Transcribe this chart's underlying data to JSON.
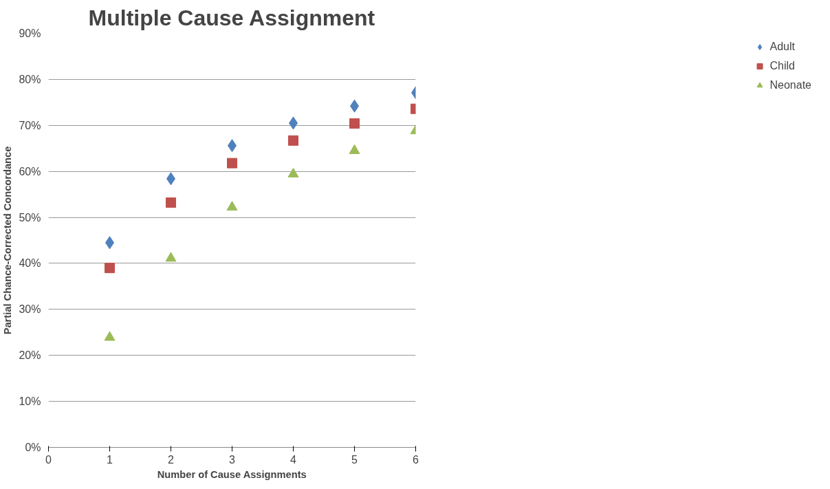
{
  "chart_data": {
    "type": "scatter",
    "title": "Multiple Cause Assignment",
    "xlabel": "Number of Cause Assignments",
    "ylabel": "Partial Chance-Corrected Concordance",
    "x": [
      1,
      2,
      3,
      4,
      5,
      6
    ],
    "series": [
      {
        "name": "Adult",
        "color": "#4f81bd",
        "marker": "diamond",
        "values": [
          44.5,
          58.4,
          65.6,
          70.5,
          74.2,
          77.1
        ]
      },
      {
        "name": "Child",
        "color": "#c0504d",
        "marker": "square",
        "values": [
          39.0,
          53.2,
          61.8,
          66.7,
          70.4,
          73.6
        ]
      },
      {
        "name": "Neonate",
        "color": "#9bbb59",
        "marker": "triangle",
        "values": [
          23.9,
          41.1,
          52.2,
          59.4,
          64.5,
          68.8
        ]
      }
    ],
    "xlim": [
      0,
      6
    ],
    "xticks": [
      0,
      1,
      2,
      3,
      4,
      5,
      6
    ],
    "ylim": [
      0,
      90
    ],
    "yticks": [
      {
        "value": 0,
        "label": "0%"
      },
      {
        "value": 10,
        "label": "10%"
      },
      {
        "value": 20,
        "label": "20%"
      },
      {
        "value": 30,
        "label": "30%"
      },
      {
        "value": 40,
        "label": "40%"
      },
      {
        "value": 50,
        "label": "50%"
      },
      {
        "value": 60,
        "label": "60%"
      },
      {
        "value": 70,
        "label": "70%"
      },
      {
        "value": 80,
        "label": "80%"
      },
      {
        "value": 90,
        "label": "90%"
      }
    ],
    "grid": "y",
    "legend": "right"
  }
}
